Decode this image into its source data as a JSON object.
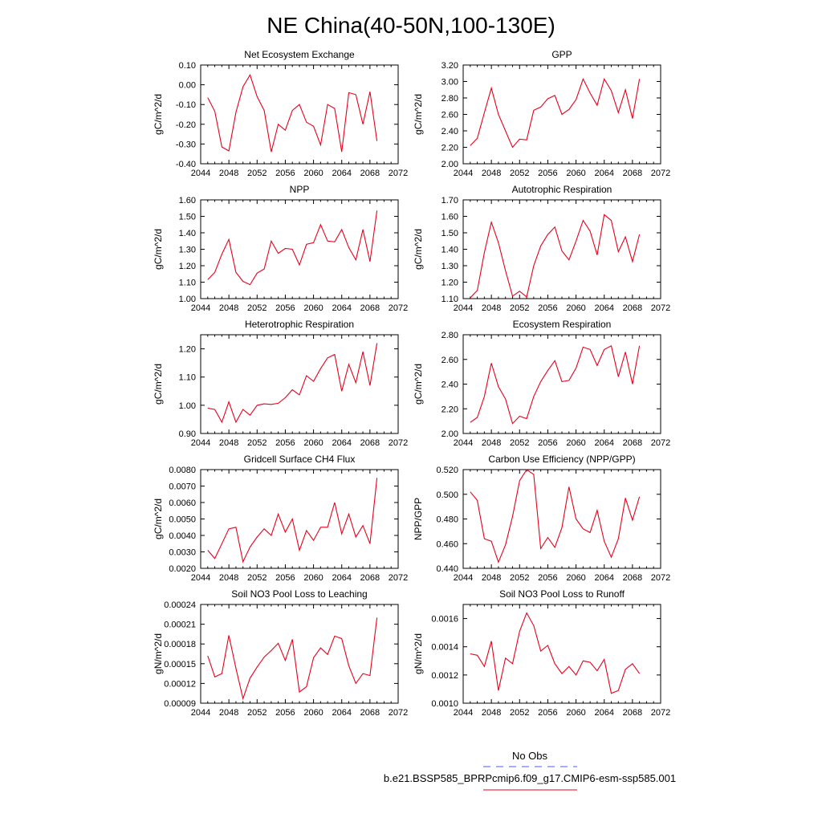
{
  "figure_title": "NE China(40-50N,100-130E)",
  "legend": {
    "obs_label": "No Obs",
    "model_label": "b.e21.BSSP585_BPRPcmip6.f09_g17.CMIP6-esm-ssp585.001",
    "obs_color": "#4a5fd6",
    "model_color": "#e8001c"
  },
  "chart_data": [
    {
      "type": "line",
      "title": "Net Ecosystem Exchange",
      "ylabel": "gC/m^2/d",
      "xlim": [
        2044,
        2072
      ],
      "ylim": [
        -0.4,
        0.1
      ],
      "xticks": [
        "2044",
        "2048",
        "2052",
        "2056",
        "2060",
        "2064",
        "2068",
        "2072"
      ],
      "yticks": [
        "-0.40",
        "-0.30",
        "-0.20",
        "-0.10",
        "0.00",
        "0.10"
      ],
      "series": [
        {
          "values": [
            -0.065,
            -0.135,
            -0.315,
            -0.335,
            -0.14,
            -0.01,
            0.05,
            -0.06,
            -0.13,
            -0.34,
            -0.2,
            -0.23,
            -0.13,
            -0.1,
            -0.19,
            -0.21,
            -0.305,
            -0.1,
            -0.12,
            -0.34,
            -0.04,
            -0.05,
            -0.2,
            -0.035,
            -0.285
          ]
        }
      ],
      "x": [
        2045,
        2046,
        2047,
        2048,
        2049,
        2050,
        2051,
        2052,
        2053,
        2054,
        2055,
        2056,
        2057,
        2058,
        2059,
        2060,
        2061,
        2062,
        2063,
        2064,
        2065,
        2066,
        2067,
        2068,
        2069
      ]
    },
    {
      "type": "line",
      "title": "GPP",
      "ylabel": "gC/m^2/d",
      "xlim": [
        2044,
        2072
      ],
      "ylim": [
        2.0,
        3.2
      ],
      "xticks": [
        "2044",
        "2048",
        "2052",
        "2056",
        "2060",
        "2064",
        "2068",
        "2072"
      ],
      "yticks": [
        "2.00",
        "2.20",
        "2.40",
        "2.60",
        "2.80",
        "3.00",
        "3.20"
      ],
      "series": [
        {
          "values": [
            2.22,
            2.31,
            2.62,
            2.92,
            2.6,
            2.4,
            2.2,
            2.3,
            2.29,
            2.65,
            2.69,
            2.79,
            2.83,
            2.6,
            2.66,
            2.78,
            3.03,
            2.86,
            2.71,
            3.03,
            2.89,
            2.62,
            2.9,
            2.55,
            3.03
          ]
        }
      ],
      "x": [
        2045,
        2046,
        2047,
        2048,
        2049,
        2050,
        2051,
        2052,
        2053,
        2054,
        2055,
        2056,
        2057,
        2058,
        2059,
        2060,
        2061,
        2062,
        2063,
        2064,
        2065,
        2066,
        2067,
        2068,
        2069
      ]
    },
    {
      "type": "line",
      "title": "NPP",
      "ylabel": "gC/m^2/d",
      "xlim": [
        2044,
        2072
      ],
      "ylim": [
        1.0,
        1.6
      ],
      "xticks": [
        "2044",
        "2048",
        "2052",
        "2056",
        "2060",
        "2064",
        "2068",
        "2072"
      ],
      "yticks": [
        "1.00",
        "1.10",
        "1.20",
        "1.30",
        "1.40",
        "1.50",
        "1.60"
      ],
      "series": [
        {
          "values": [
            1.115,
            1.16,
            1.27,
            1.36,
            1.16,
            1.105,
            1.085,
            1.155,
            1.18,
            1.35,
            1.275,
            1.305,
            1.3,
            1.205,
            1.33,
            1.34,
            1.45,
            1.35,
            1.345,
            1.42,
            1.31,
            1.235,
            1.42,
            1.225,
            1.535
          ]
        }
      ],
      "x": [
        2045,
        2046,
        2047,
        2048,
        2049,
        2050,
        2051,
        2052,
        2053,
        2054,
        2055,
        2056,
        2057,
        2058,
        2059,
        2060,
        2061,
        2062,
        2063,
        2064,
        2065,
        2066,
        2067,
        2068,
        2069
      ]
    },
    {
      "type": "line",
      "title": "Autotrophic Respiration",
      "ylabel": "gC/m^2/d",
      "xlim": [
        2044,
        2072
      ],
      "ylim": [
        1.1,
        1.7
      ],
      "xticks": [
        "2044",
        "2048",
        "2052",
        "2056",
        "2060",
        "2064",
        "2068",
        "2072"
      ],
      "yticks": [
        "1.10",
        "1.20",
        "1.30",
        "1.40",
        "1.50",
        "1.60",
        "1.70"
      ],
      "series": [
        {
          "values": [
            1.105,
            1.15,
            1.38,
            1.565,
            1.44,
            1.27,
            1.115,
            1.145,
            1.11,
            1.3,
            1.42,
            1.49,
            1.535,
            1.39,
            1.335,
            1.45,
            1.575,
            1.51,
            1.365,
            1.61,
            1.575,
            1.385,
            1.475,
            1.325,
            1.49
          ]
        }
      ],
      "x": [
        2045,
        2046,
        2047,
        2048,
        2049,
        2050,
        2051,
        2052,
        2053,
        2054,
        2055,
        2056,
        2057,
        2058,
        2059,
        2060,
        2061,
        2062,
        2063,
        2064,
        2065,
        2066,
        2067,
        2068,
        2069
      ]
    },
    {
      "type": "line",
      "title": "Heterotrophic Respiration",
      "ylabel": "gC/m^2/d",
      "xlim": [
        2044,
        2072
      ],
      "ylim": [
        0.9,
        1.25
      ],
      "xticks": [
        "2044",
        "2048",
        "2052",
        "2056",
        "2060",
        "2064",
        "2068",
        "2072"
      ],
      "yticks": [
        "0.90",
        "1.00",
        "1.10",
        "1.20"
      ],
      "series": [
        {
          "values": [
            0.99,
            0.985,
            0.94,
            1.012,
            0.94,
            0.985,
            0.965,
            1.0,
            1.005,
            1.003,
            1.007,
            1.027,
            1.055,
            1.037,
            1.105,
            1.085,
            1.13,
            1.168,
            1.18,
            1.05,
            1.145,
            1.08,
            1.19,
            1.07,
            1.22
          ]
        }
      ],
      "x": [
        2045,
        2046,
        2047,
        2048,
        2049,
        2050,
        2051,
        2052,
        2053,
        2054,
        2055,
        2056,
        2057,
        2058,
        2059,
        2060,
        2061,
        2062,
        2063,
        2064,
        2065,
        2066,
        2067,
        2068,
        2069
      ]
    },
    {
      "type": "line",
      "title": "Ecosystem Respiration",
      "ylabel": "gC/m^2/d",
      "xlim": [
        2044,
        2072
      ],
      "ylim": [
        2.0,
        2.8
      ],
      "xticks": [
        "2044",
        "2048",
        "2052",
        "2056",
        "2060",
        "2064",
        "2068",
        "2072"
      ],
      "yticks": [
        "2.00",
        "2.20",
        "2.40",
        "2.60",
        "2.80"
      ],
      "series": [
        {
          "values": [
            2.09,
            2.13,
            2.3,
            2.57,
            2.38,
            2.28,
            2.08,
            2.14,
            2.12,
            2.3,
            2.42,
            2.51,
            2.59,
            2.42,
            2.43,
            2.53,
            2.7,
            2.68,
            2.55,
            2.68,
            2.71,
            2.46,
            2.66,
            2.4,
            2.71
          ]
        }
      ],
      "x": [
        2045,
        2046,
        2047,
        2048,
        2049,
        2050,
        2051,
        2052,
        2053,
        2054,
        2055,
        2056,
        2057,
        2058,
        2059,
        2060,
        2061,
        2062,
        2063,
        2064,
        2065,
        2066,
        2067,
        2068,
        2069
      ]
    },
    {
      "type": "line",
      "title": "Gridcell Surface CH4 Flux",
      "ylabel": "gC/m^2/d",
      "xlim": [
        2044,
        2072
      ],
      "ylim": [
        0.002,
        0.008
      ],
      "xticks": [
        "2044",
        "2048",
        "2052",
        "2056",
        "2060",
        "2064",
        "2068",
        "2072"
      ],
      "yticks": [
        "0.0020",
        "0.0030",
        "0.0040",
        "0.0050",
        "0.0060",
        "0.0070",
        "0.0080"
      ],
      "series": [
        {
          "values": [
            0.0031,
            0.0026,
            0.0035,
            0.0044,
            0.0045,
            0.0024,
            0.0033,
            0.0039,
            0.0044,
            0.004,
            0.0053,
            0.0042,
            0.005,
            0.0031,
            0.0043,
            0.0037,
            0.0045,
            0.0045,
            0.006,
            0.0041,
            0.0053,
            0.0039,
            0.0046,
            0.0035,
            0.0075
          ]
        }
      ],
      "x": [
        2045,
        2046,
        2047,
        2048,
        2049,
        2050,
        2051,
        2052,
        2053,
        2054,
        2055,
        2056,
        2057,
        2058,
        2059,
        2060,
        2061,
        2062,
        2063,
        2064,
        2065,
        2066,
        2067,
        2068,
        2069
      ]
    },
    {
      "type": "line",
      "title": "Carbon Use Efficiency (NPP/GPP)",
      "ylabel": "NPP/GPP",
      "xlim": [
        2044,
        2072
      ],
      "ylim": [
        0.44,
        0.52
      ],
      "xticks": [
        "2044",
        "2048",
        "2052",
        "2056",
        "2060",
        "2064",
        "2068",
        "2072"
      ],
      "yticks": [
        "0.440",
        "0.460",
        "0.480",
        "0.500",
        "0.520"
      ],
      "series": [
        {
          "values": [
            0.502,
            0.495,
            0.464,
            0.462,
            0.445,
            0.459,
            0.482,
            0.511,
            0.52,
            0.516,
            0.456,
            0.465,
            0.457,
            0.473,
            0.506,
            0.48,
            0.472,
            0.469,
            0.487,
            0.462,
            0.449,
            0.464,
            0.497,
            0.479,
            0.498
          ]
        }
      ],
      "x": [
        2045,
        2046,
        2047,
        2048,
        2049,
        2050,
        2051,
        2052,
        2053,
        2054,
        2055,
        2056,
        2057,
        2058,
        2059,
        2060,
        2061,
        2062,
        2063,
        2064,
        2065,
        2066,
        2067,
        2068,
        2069
      ]
    },
    {
      "type": "line",
      "title": "Soil NO3 Pool Loss to Leaching",
      "ylabel": "gN/m^2/d",
      "xlim": [
        2044,
        2072
      ],
      "ylim": [
        9e-05,
        0.00024
      ],
      "xticks": [
        "2044",
        "2048",
        "2052",
        "2056",
        "2060",
        "2064",
        "2068",
        "2072"
      ],
      "yticks": [
        "0.00009",
        "0.00012",
        "0.00015",
        "0.00018",
        "0.00021",
        "0.00024"
      ],
      "series": [
        {
          "values": [
            0.000162,
            0.00013,
            0.000135,
            0.000193,
            0.000143,
            9.7e-05,
            0.000128,
            0.000145,
            0.00016,
            0.00017,
            0.000181,
            0.000155,
            0.000187,
            0.000107,
            0.000115,
            0.000159,
            0.000174,
            0.000164,
            0.000192,
            0.000188,
            0.000147,
            0.00012,
            0.000135,
            0.000132,
            0.00022
          ]
        }
      ],
      "x": [
        2045,
        2046,
        2047,
        2048,
        2049,
        2050,
        2051,
        2052,
        2053,
        2054,
        2055,
        2056,
        2057,
        2058,
        2059,
        2060,
        2061,
        2062,
        2063,
        2064,
        2065,
        2066,
        2067,
        2068,
        2069
      ]
    },
    {
      "type": "line",
      "title": "Soil NO3 Pool Loss to Runoff",
      "ylabel": "gN/m^2/d",
      "xlim": [
        2044,
        2072
      ],
      "ylim": [
        0.001,
        0.0017
      ],
      "xticks": [
        "2044",
        "2048",
        "2052",
        "2056",
        "2060",
        "2064",
        "2068",
        "2072"
      ],
      "yticks": [
        "0.0010",
        "0.0012",
        "0.0014",
        "0.0016"
      ],
      "series": [
        {
          "values": [
            0.00135,
            0.00134,
            0.00126,
            0.00144,
            0.00109,
            0.00132,
            0.00128,
            0.00151,
            0.00164,
            0.00155,
            0.00137,
            0.00141,
            0.00128,
            0.00121,
            0.00126,
            0.0012,
            0.0013,
            0.00129,
            0.00123,
            0.00131,
            0.00107,
            0.00109,
            0.00124,
            0.00128,
            0.00121
          ]
        }
      ],
      "x": [
        2045,
        2046,
        2047,
        2048,
        2049,
        2050,
        2051,
        2052,
        2053,
        2054,
        2055,
        2056,
        2057,
        2058,
        2059,
        2060,
        2061,
        2062,
        2063,
        2064,
        2065,
        2066,
        2067,
        2068,
        2069
      ]
    }
  ]
}
